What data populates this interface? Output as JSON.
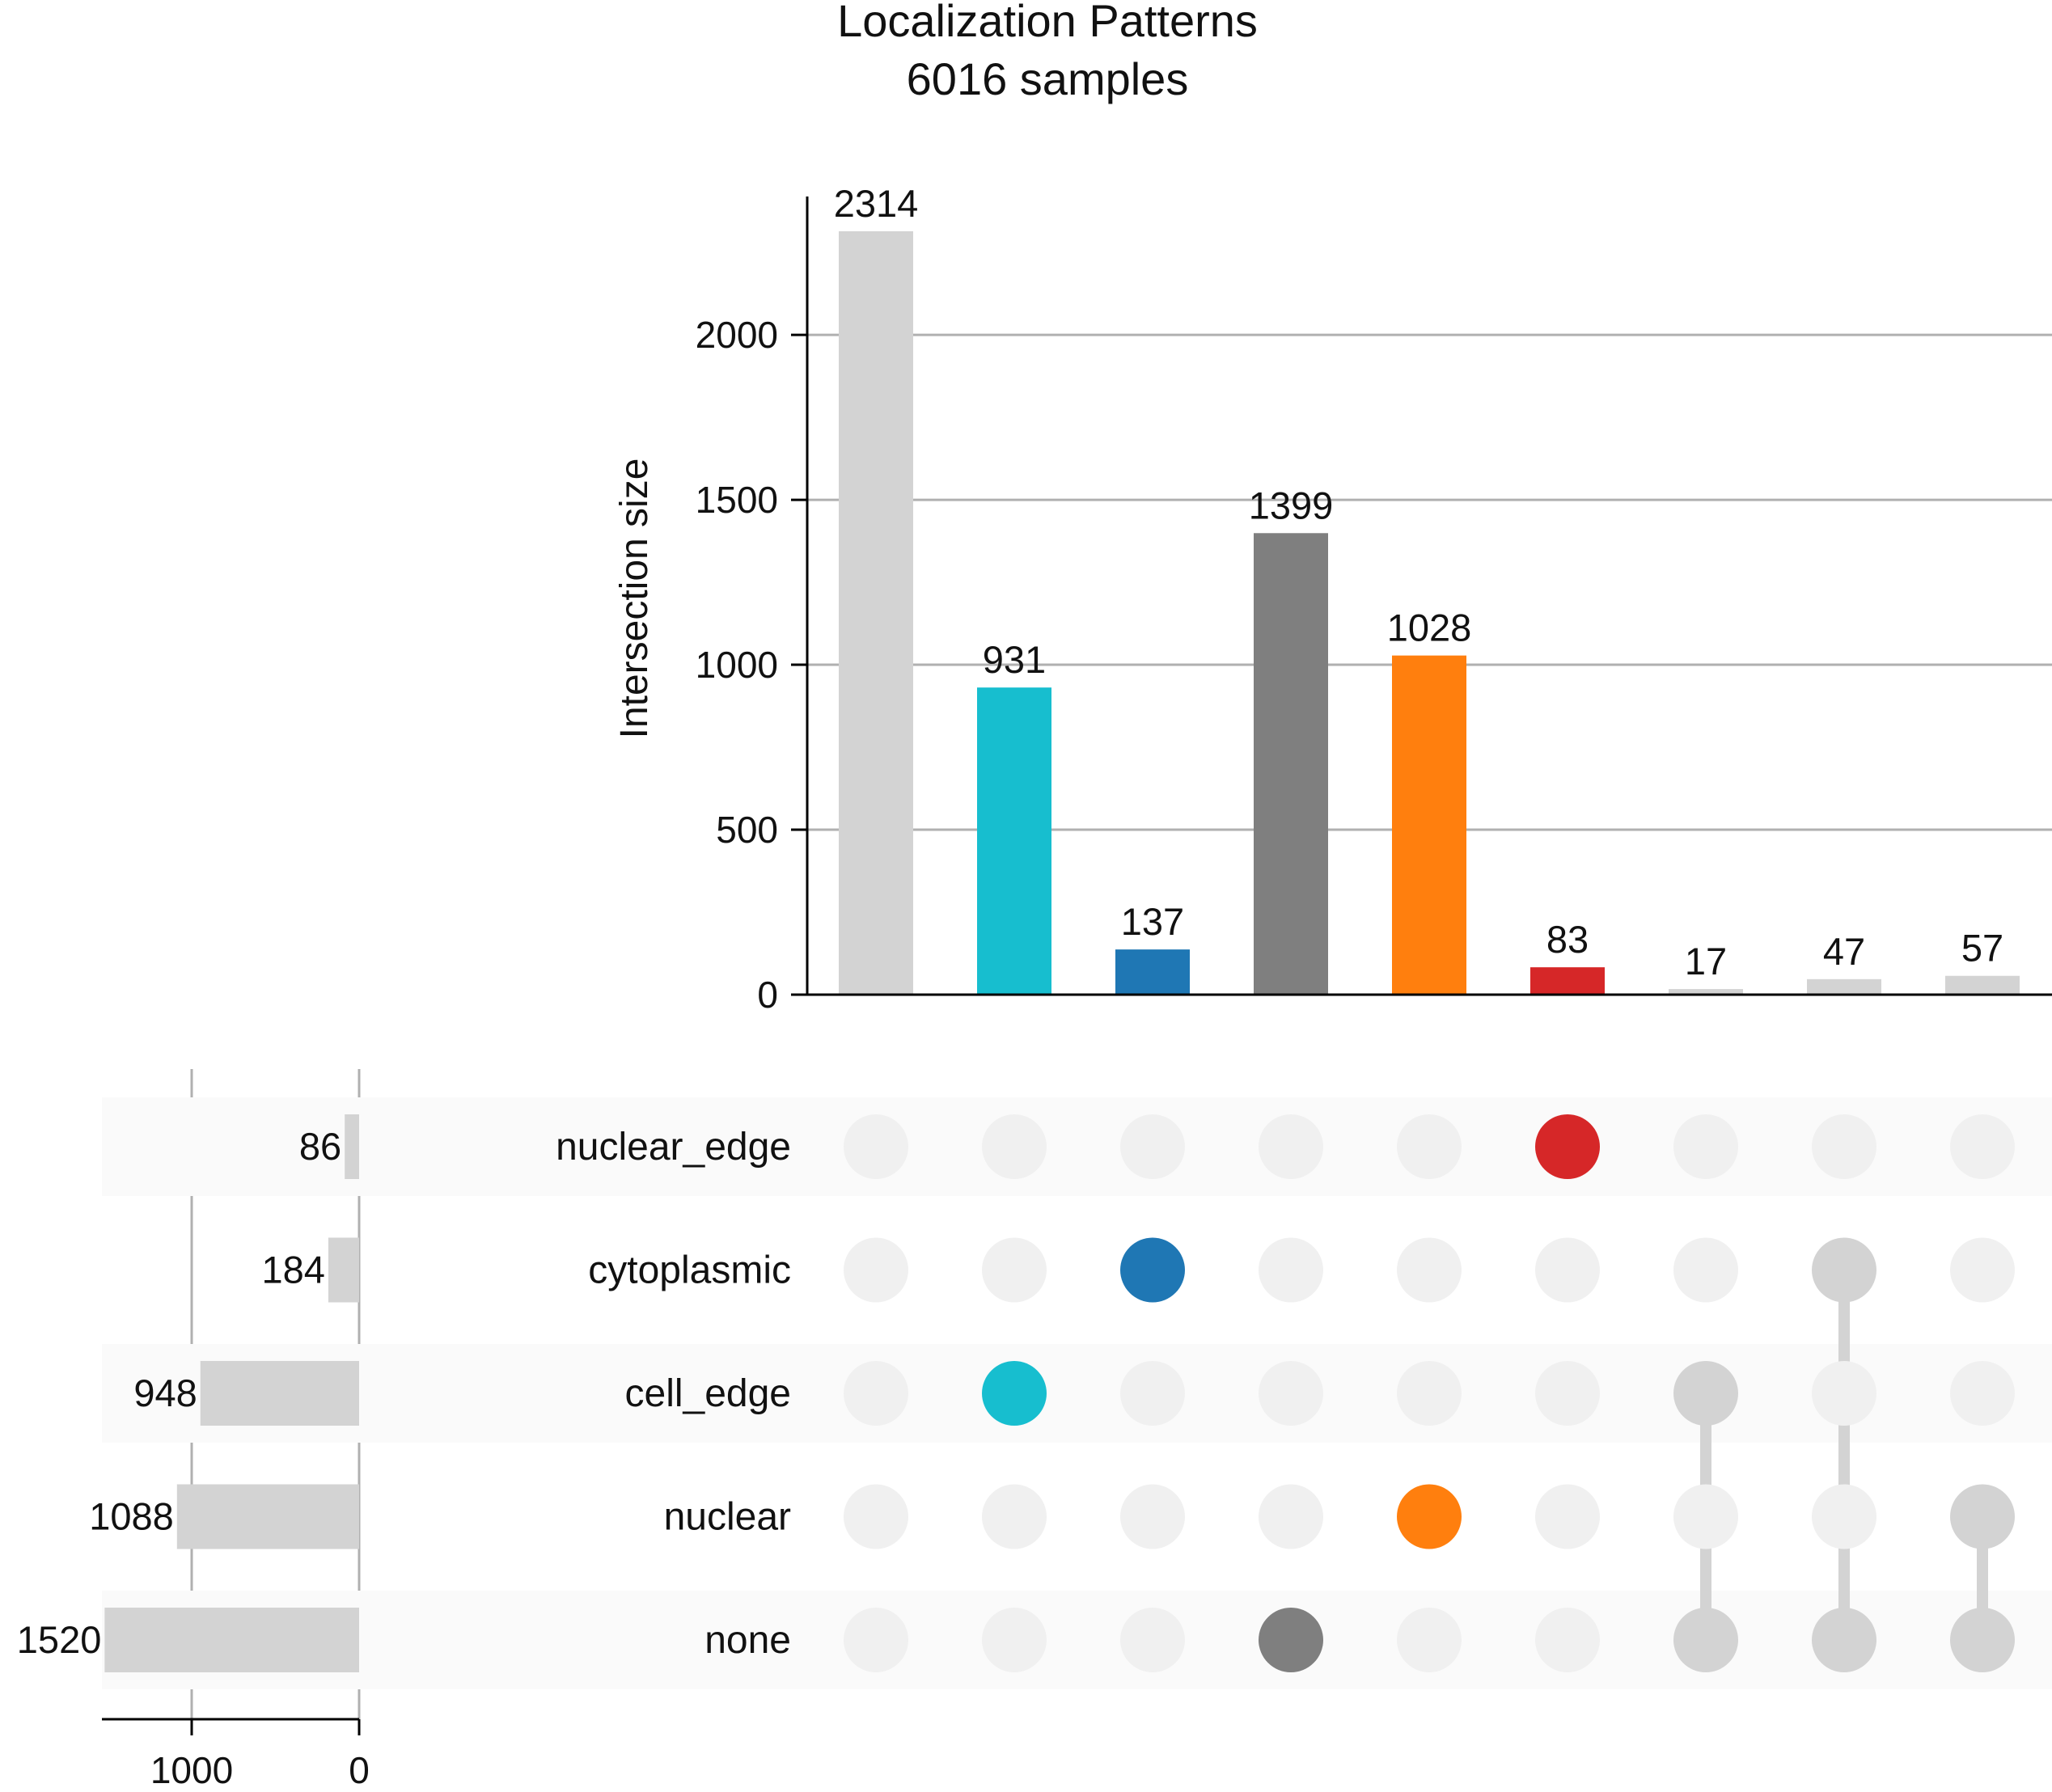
{
  "chart_data": {
    "type": "upset",
    "title": "Localization Patterns",
    "subtitle": "6016 samples",
    "intersection_axis": {
      "label": "Intersection size",
      "ticks": [
        0,
        500,
        1000,
        1500,
        2000
      ],
      "ylim": [
        0,
        2314
      ]
    },
    "set_size_axis": {
      "ticks": [
        1000,
        0
      ]
    },
    "sets": [
      {
        "name": "nuclear_edge",
        "size": 86
      },
      {
        "name": "cytoplasmic",
        "size": 184
      },
      {
        "name": "cell_edge",
        "size": 948
      },
      {
        "name": "nuclear",
        "size": 1088
      },
      {
        "name": "none",
        "size": 1520
      }
    ],
    "intersections": [
      {
        "sets": [],
        "value": 2314,
        "color": "#d3d3d3"
      },
      {
        "sets": [
          "cell_edge"
        ],
        "value": 931,
        "color": "#17becf"
      },
      {
        "sets": [
          "cytoplasmic"
        ],
        "value": 137,
        "color": "#1f77b4"
      },
      {
        "sets": [
          "none"
        ],
        "value": 1399,
        "color": "#7f7f7f"
      },
      {
        "sets": [
          "nuclear"
        ],
        "value": 1028,
        "color": "#ff7f0e"
      },
      {
        "sets": [
          "nuclear_edge"
        ],
        "value": 83,
        "color": "#d62728"
      },
      {
        "sets": [
          "cell_edge",
          "none"
        ],
        "value": 17,
        "color": "#d3d3d3"
      },
      {
        "sets": [
          "cytoplasmic",
          "none"
        ],
        "value": 47,
        "color": "#d3d3d3"
      },
      {
        "sets": [
          "nuclear",
          "none"
        ],
        "value": 57,
        "color": "#d3d3d3"
      }
    ],
    "grid": true
  }
}
